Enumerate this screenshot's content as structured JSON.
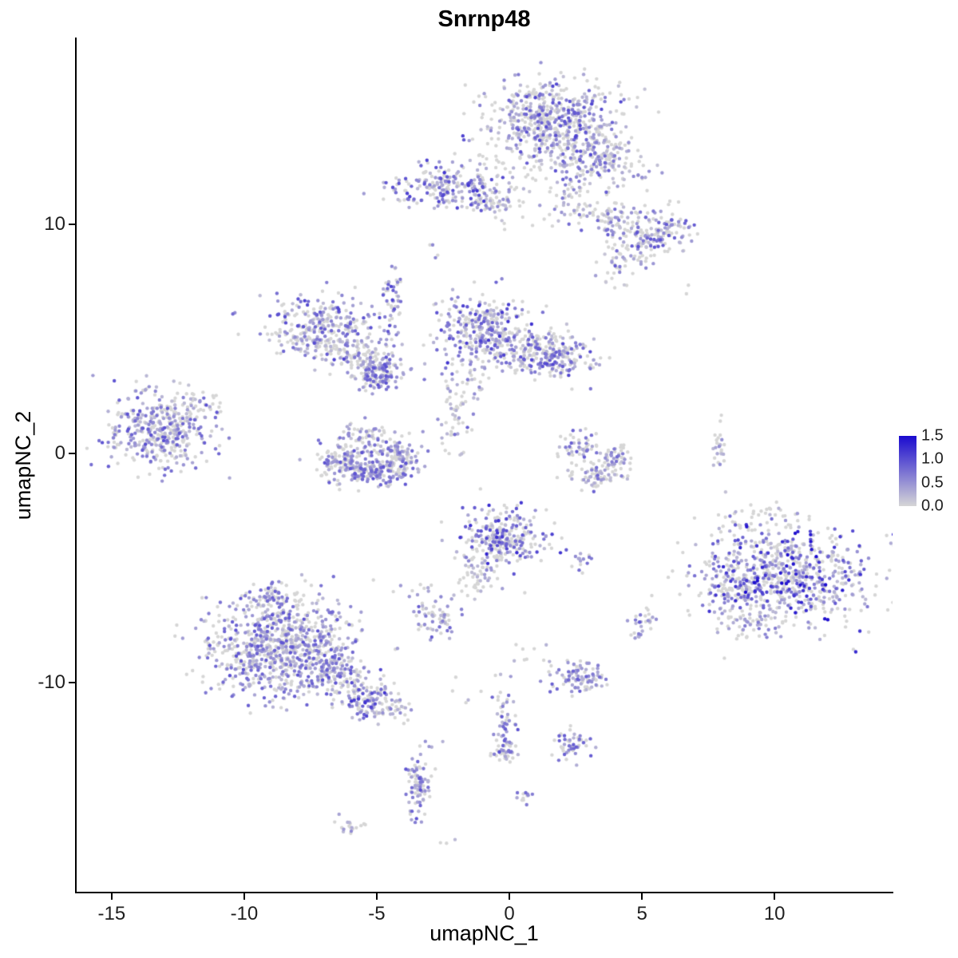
{
  "chart_data": {
    "type": "scatter",
    "title": "Snrnp48",
    "xlabel": "umapNC_1",
    "ylabel": "umapNC_2",
    "xlim": [
      -16.35,
      14.45
    ],
    "ylim": [
      -19.15,
      18.15
    ],
    "xticks": [
      -15,
      -10,
      -5,
      0,
      5,
      10
    ],
    "yticks": [
      10,
      0,
      -10
    ],
    "grid": false,
    "legend_position": "right",
    "color_scale": {
      "low": "#D6D6D6",
      "high": "#1A0ACF",
      "limits": [
        0,
        1.5
      ]
    },
    "legend": {
      "labels": [
        "1.5",
        "1.0",
        "0.5",
        "0.0"
      ],
      "values": [
        1.5,
        1.0,
        0.5,
        0.0
      ]
    },
    "clusters": [
      {
        "n": 620,
        "x": 1.6,
        "y": 14.4,
        "sx": 1.25,
        "sy": 0.95,
        "p0": 0.45,
        "lo": 0.15,
        "hi": 1.1
      },
      {
        "n": 130,
        "x": 3.3,
        "y": 12.7,
        "sx": 0.75,
        "sy": 0.6,
        "p0": 0.5,
        "lo": 0.15,
        "hi": 0.9
      },
      {
        "n": 60,
        "x": 2.3,
        "y": 11.4,
        "sx": 0.45,
        "sy": 0.9,
        "p0": 0.6,
        "lo": 0.15,
        "hi": 0.8
      },
      {
        "n": 25,
        "x": -0.2,
        "y": 12.6,
        "sx": 0.9,
        "sy": 0.6,
        "p0": 0.75,
        "lo": 0.1,
        "hi": 0.5
      },
      {
        "n": 20,
        "x": 4.8,
        "y": 12.3,
        "sx": 0.6,
        "sy": 0.5,
        "p0": 0.65,
        "lo": 0.15,
        "hi": 0.7
      },
      {
        "n": 210,
        "x": -2.4,
        "y": 11.6,
        "sx": 1.15,
        "sy": 0.5,
        "p0": 0.4,
        "lo": 0.2,
        "hi": 1.2
      },
      {
        "n": 55,
        "x": -0.6,
        "y": 11.1,
        "sx": 0.5,
        "sy": 0.35,
        "p0": 0.55,
        "lo": 0.15,
        "hi": 0.7
      },
      {
        "n": 180,
        "x": 5.2,
        "y": 9.6,
        "sx": 0.85,
        "sy": 0.55,
        "p0": 0.5,
        "lo": 0.15,
        "hi": 1.0
      },
      {
        "n": 45,
        "x": 3.6,
        "y": 10.4,
        "sx": 0.5,
        "sy": 0.35,
        "p0": 0.55,
        "lo": 0.15,
        "hi": 0.8
      },
      {
        "n": 45,
        "x": 4.3,
        "y": 8.4,
        "sx": 0.4,
        "sy": 0.5,
        "p0": 0.6,
        "lo": 0.1,
        "hi": 0.7
      },
      {
        "n": 8,
        "x": 0.8,
        "y": 10.6,
        "sx": 0.7,
        "sy": 0.6,
        "p0": 0.7,
        "lo": 0.1,
        "hi": 0.5
      },
      {
        "n": 4,
        "x": -2.9,
        "y": 8.8,
        "sx": 0.15,
        "sy": 0.25,
        "p0": 0.4,
        "lo": 0.5,
        "hi": 0.9
      },
      {
        "n": 2,
        "x": 6.8,
        "y": 7.2,
        "sx": 0.1,
        "sy": 0.1,
        "p0": 0.9,
        "lo": 0.2,
        "hi": 0.4
      },
      {
        "n": 2,
        "x": -10.5,
        "y": 6.1,
        "sx": 0.1,
        "sy": 0.1,
        "p0": 0.3,
        "lo": 0.4,
        "hi": 0.8
      },
      {
        "n": 300,
        "x": -7.1,
        "y": 5.4,
        "sx": 0.95,
        "sy": 0.7,
        "p0": 0.45,
        "lo": 0.2,
        "hi": 1.1
      },
      {
        "n": 90,
        "x": -5.7,
        "y": 4.3,
        "sx": 0.55,
        "sy": 0.45,
        "p0": 0.55,
        "lo": 0.15,
        "hi": 0.8
      },
      {
        "n": 150,
        "x": -4.9,
        "y": 3.5,
        "sx": 0.45,
        "sy": 0.35,
        "p0": 0.35,
        "lo": 0.25,
        "hi": 1.0
      },
      {
        "n": 55,
        "x": -4.4,
        "y": 6.7,
        "sx": 0.18,
        "sy": 0.85,
        "p0": 0.4,
        "lo": 0.3,
        "hi": 1.1
      },
      {
        "n": 310,
        "x": -1.1,
        "y": 5.4,
        "sx": 0.85,
        "sy": 0.75,
        "p0": 0.4,
        "lo": 0.2,
        "hi": 1.2
      },
      {
        "n": 190,
        "x": 0.9,
        "y": 4.5,
        "sx": 0.9,
        "sy": 0.5,
        "p0": 0.5,
        "lo": 0.15,
        "hi": 1.0
      },
      {
        "n": 110,
        "x": 2.1,
        "y": 4.1,
        "sx": 0.55,
        "sy": 0.45,
        "p0": 0.4,
        "lo": 0.25,
        "hi": 1.1
      },
      {
        "n": 55,
        "x": -2.1,
        "y": 1.8,
        "sx": 0.3,
        "sy": 1.0,
        "p0": 0.55,
        "lo": 0.15,
        "hi": 0.9
      },
      {
        "n": 25,
        "x": -1.5,
        "y": 3.2,
        "sx": 0.5,
        "sy": 0.4,
        "p0": 0.6,
        "lo": 0.15,
        "hi": 0.6
      },
      {
        "n": 400,
        "x": -13.2,
        "y": 1.0,
        "sx": 1.0,
        "sy": 0.85,
        "p0": 0.45,
        "lo": 0.2,
        "hi": 1.0
      },
      {
        "n": 35,
        "x": -11.7,
        "y": 2.2,
        "sx": 0.5,
        "sy": 0.3,
        "p0": 0.6,
        "lo": 0.15,
        "hi": 0.6
      },
      {
        "n": 120,
        "x": -6.3,
        "y": -0.3,
        "sx": 0.5,
        "sy": 0.45,
        "p0": 0.45,
        "lo": 0.2,
        "hi": 1.0
      },
      {
        "n": 140,
        "x": -5.2,
        "y": -0.8,
        "sx": 0.55,
        "sy": 0.35,
        "p0": 0.4,
        "lo": 0.2,
        "hi": 1.0
      },
      {
        "n": 120,
        "x": -4.2,
        "y": -0.2,
        "sx": 0.45,
        "sy": 0.45,
        "p0": 0.45,
        "lo": 0.2,
        "hi": 1.0
      },
      {
        "n": 60,
        "x": -5.5,
        "y": 0.7,
        "sx": 0.55,
        "sy": 0.35,
        "p0": 0.55,
        "lo": 0.15,
        "hi": 0.8
      },
      {
        "n": 55,
        "x": 2.7,
        "y": 0.3,
        "sx": 0.4,
        "sy": 0.4,
        "p0": 0.55,
        "lo": 0.15,
        "hi": 0.9
      },
      {
        "n": 65,
        "x": 3.2,
        "y": -0.9,
        "sx": 0.5,
        "sy": 0.3,
        "p0": 0.5,
        "lo": 0.2,
        "hi": 0.9
      },
      {
        "n": 50,
        "x": 4.0,
        "y": -0.3,
        "sx": 0.35,
        "sy": 0.4,
        "p0": 0.55,
        "lo": 0.15,
        "hi": 0.8
      },
      {
        "n": 25,
        "x": 7.9,
        "y": 0.1,
        "sx": 0.15,
        "sy": 0.55,
        "p0": 0.75,
        "lo": 0.2,
        "hi": 0.8
      },
      {
        "n": 280,
        "x": -0.2,
        "y": -3.7,
        "sx": 0.85,
        "sy": 0.7,
        "p0": 0.5,
        "lo": 0.2,
        "hi": 1.3
      },
      {
        "n": 45,
        "x": -1.2,
        "y": -5.3,
        "sx": 0.4,
        "sy": 0.5,
        "p0": 0.6,
        "lo": 0.15,
        "hi": 0.7
      },
      {
        "n": 14,
        "x": 2.9,
        "y": -4.7,
        "sx": 0.25,
        "sy": 0.25,
        "p0": 0.5,
        "lo": 0.3,
        "hi": 0.8
      },
      {
        "n": 720,
        "x": 10.4,
        "y": -5.3,
        "sx": 1.55,
        "sy": 1.15,
        "p0": 0.45,
        "lo": 0.2,
        "hi": 1.5
      },
      {
        "n": 80,
        "x": 8.4,
        "y": -5.8,
        "sx": 0.5,
        "sy": 0.6,
        "p0": 0.3,
        "lo": 0.3,
        "hi": 1.2
      },
      {
        "n": 50,
        "x": 9.2,
        "y": -7.4,
        "sx": 0.5,
        "sy": 0.35,
        "p0": 0.5,
        "lo": 0.2,
        "hi": 0.9
      },
      {
        "n": 30,
        "x": 9.5,
        "y": -2.8,
        "sx": 0.7,
        "sy": 0.4,
        "p0": 0.7,
        "lo": 0.15,
        "hi": 0.6
      },
      {
        "n": 820,
        "x": -8.7,
        "y": -8.4,
        "sx": 1.4,
        "sy": 1.05,
        "p0": 0.45,
        "lo": 0.2,
        "hi": 1.0
      },
      {
        "n": 80,
        "x": -8.9,
        "y": -6.4,
        "sx": 0.6,
        "sy": 0.45,
        "p0": 0.5,
        "lo": 0.2,
        "hi": 0.9
      },
      {
        "n": 130,
        "x": -6.7,
        "y": -9.7,
        "sx": 0.6,
        "sy": 0.5,
        "p0": 0.45,
        "lo": 0.2,
        "hi": 1.0
      },
      {
        "n": 110,
        "x": -5.4,
        "y": -10.6,
        "sx": 0.5,
        "sy": 0.45,
        "p0": 0.45,
        "lo": 0.2,
        "hi": 1.2
      },
      {
        "n": 40,
        "x": -4.4,
        "y": -11.2,
        "sx": 0.4,
        "sy": 0.35,
        "p0": 0.6,
        "lo": 0.15,
        "hi": 0.7
      },
      {
        "n": 65,
        "x": -2.7,
        "y": -7.1,
        "sx": 0.45,
        "sy": 0.4,
        "p0": 0.45,
        "lo": 0.2,
        "hi": 0.9
      },
      {
        "n": 95,
        "x": 2.6,
        "y": -9.7,
        "sx": 0.55,
        "sy": 0.35,
        "p0": 0.35,
        "lo": 0.25,
        "hi": 0.9
      },
      {
        "n": 30,
        "x": 5.0,
        "y": -7.4,
        "sx": 0.3,
        "sy": 0.3,
        "p0": 0.5,
        "lo": 0.25,
        "hi": 0.9
      },
      {
        "n": 60,
        "x": -0.2,
        "y": -11.9,
        "sx": 0.2,
        "sy": 0.75,
        "p0": 0.45,
        "lo": 0.2,
        "hi": 1.0
      },
      {
        "n": 25,
        "x": 0.0,
        "y": -13.0,
        "sx": 0.3,
        "sy": 0.25,
        "p0": 0.5,
        "lo": 0.2,
        "hi": 0.8
      },
      {
        "n": 50,
        "x": 2.4,
        "y": -12.7,
        "sx": 0.4,
        "sy": 0.35,
        "p0": 0.4,
        "lo": 0.25,
        "hi": 0.9
      },
      {
        "n": 85,
        "x": -3.4,
        "y": -14.5,
        "sx": 0.22,
        "sy": 0.75,
        "p0": 0.4,
        "lo": 0.25,
        "hi": 1.0
      },
      {
        "n": 12,
        "x": 0.6,
        "y": -14.9,
        "sx": 0.15,
        "sy": 0.2,
        "p0": 0.4,
        "lo": 0.3,
        "hi": 0.9
      },
      {
        "n": 18,
        "x": -6.1,
        "y": -16.3,
        "sx": 0.3,
        "sy": 0.2,
        "p0": 0.6,
        "lo": 0.2,
        "hi": 0.6
      },
      {
        "n": 10,
        "x": -3.3,
        "y": -6.0,
        "sx": 0.4,
        "sy": 0.4,
        "p0": 0.7,
        "lo": 0.1,
        "hi": 0.5
      },
      {
        "n": 8,
        "x": 0.8,
        "y": -8.6,
        "sx": 0.5,
        "sy": 0.4,
        "p0": 0.7,
        "lo": 0.2,
        "hi": 0.5
      },
      {
        "n": 5,
        "x": -1.6,
        "y": -10.3,
        "sx": 0.6,
        "sy": 0.5,
        "p0": 0.7,
        "lo": 0.2,
        "hi": 0.5
      },
      {
        "n": 4,
        "x": -3.0,
        "y": -12.3,
        "sx": 0.4,
        "sy": 0.5,
        "p0": 0.7,
        "lo": 0.2,
        "hi": 0.5
      },
      {
        "n": 3,
        "x": -2.1,
        "y": -16.9,
        "sx": 0.2,
        "sy": 0.2,
        "p0": 0.6,
        "lo": 0.2,
        "hi": 0.5
      }
    ]
  }
}
